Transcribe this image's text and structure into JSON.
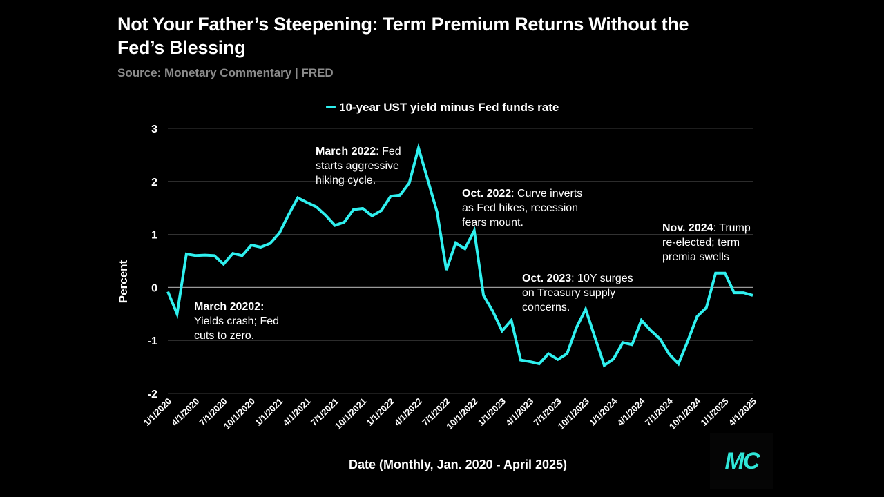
{
  "header": {
    "title": "Not Your Father’s Steepening: Term Premium Returns Without the Fed’s Blessing",
    "source": "Source: Monetary Commentary | FRED"
  },
  "logo": {
    "text": "MC",
    "color": "#2fe6d8"
  },
  "colors": {
    "background": "#000000",
    "line": "#2ff0ef",
    "grid": "#3a3a3a",
    "zero_line": "#9a9a9a"
  },
  "chart_data": {
    "type": "line",
    "title": "",
    "xlabel": "Date (Monthly, Jan. 2020 - April 2025)",
    "ylabel": "Percent",
    "ylim": [
      -2,
      3
    ],
    "yticks": [
      3,
      2,
      1,
      0,
      -1,
      -2
    ],
    "grid": true,
    "legend": "top",
    "xtick_labels": [
      "1/1/2020",
      "4/1/2020",
      "7/1/2020",
      "10/1/2020",
      "1/1/2021",
      "4/1/2021",
      "7/1/2021",
      "10/1/2021",
      "1/1/2022",
      "4/1/2022",
      "7/1/2022",
      "10/1/2022",
      "1/1/2023",
      "4/1/2023",
      "7/1/2023",
      "10/1/2023",
      "1/1/2024",
      "4/1/2024",
      "7/1/2024",
      "10/1/2024",
      "1/1/2025",
      "4/1/2025"
    ],
    "series": [
      {
        "name": "10-year UST yield minus Fed funds rate",
        "values": [
          -0.08,
          -0.5,
          0.63,
          0.6,
          0.61,
          0.6,
          0.44,
          0.64,
          0.6,
          0.8,
          0.76,
          0.83,
          1.02,
          1.37,
          1.69,
          1.6,
          1.52,
          1.36,
          1.17,
          1.23,
          1.47,
          1.49,
          1.35,
          1.45,
          1.72,
          1.74,
          1.97,
          2.63,
          2.03,
          1.42,
          0.33,
          0.84,
          0.73,
          1.07,
          -0.15,
          -0.45,
          -0.82,
          -0.62,
          -1.37,
          -1.4,
          -1.44,
          -1.25,
          -1.36,
          -1.25,
          -0.76,
          -0.41,
          -0.94,
          -1.47,
          -1.35,
          -1.04,
          -1.08,
          -0.62,
          -0.81,
          -0.97,
          -1.26,
          -1.44,
          -1.01,
          -0.55,
          -0.38,
          0.27,
          0.27,
          -0.1,
          -0.1,
          -0.15
        ]
      }
    ],
    "annotations": [
      {
        "bold": "March 2022",
        "lines": [
          ": Fed",
          "starts aggressive",
          "hiking cycle."
        ]
      },
      {
        "bold": "March 20202:",
        "lines": [
          "",
          "Yields crash; Fed",
          "cuts to zero."
        ]
      },
      {
        "bold": "Oct. 2022",
        "lines": [
          ": Curve inverts",
          "as Fed hikes, recession",
          "fears mount."
        ]
      },
      {
        "bold": "Oct. 2023",
        "lines": [
          ": 10Y surges",
          "on Treasury supply",
          "concerns."
        ]
      },
      {
        "bold": "Nov. 2024",
        "lines": [
          ": Trump",
          "re-elected; term",
          "premia swells"
        ]
      }
    ]
  }
}
